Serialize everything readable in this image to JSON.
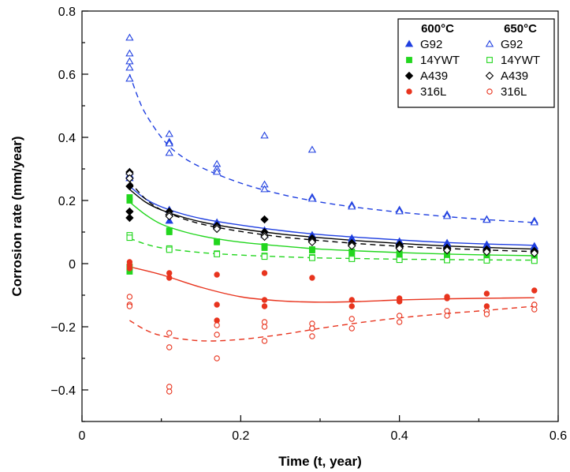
{
  "chart_data": {
    "type": "scatter",
    "xlabel": "Time (t, year)",
    "ylabel": "Corrosion rate (mm/year)",
    "xlim": [
      0,
      0.6
    ],
    "ylim": [
      -0.5,
      0.8
    ],
    "x_ticks": [
      "0",
      "0.2",
      "0.4",
      "0.6"
    ],
    "y_ticks": [
      "−0.4",
      "−0.2",
      "0",
      "0.2",
      "0.4",
      "0.6",
      "0.8"
    ],
    "x_tick_values": [
      0,
      0.2,
      0.4,
      0.6
    ],
    "y_tick_values": [
      -0.4,
      -0.2,
      0,
      0.2,
      0.4,
      0.6,
      0.8
    ],
    "grid": false,
    "legend_placement": "top-right",
    "legend_headers": [
      "600°C",
      "650°C"
    ],
    "series": [
      {
        "name": "G92",
        "group": "600°C",
        "marker": "triangle",
        "filled": true,
        "color": "#1f3fe0",
        "dash": "solid",
        "points": [
          [
            0.06,
            0.29
          ],
          [
            0.06,
            0.28
          ],
          [
            0.06,
            0.27
          ],
          [
            0.11,
            0.17
          ],
          [
            0.11,
            0.135
          ],
          [
            0.17,
            0.13
          ],
          [
            0.17,
            0.12
          ],
          [
            0.23,
            0.105
          ],
          [
            0.23,
            0.09
          ],
          [
            0.29,
            0.09
          ],
          [
            0.29,
            0.085
          ],
          [
            0.34,
            0.08
          ],
          [
            0.34,
            0.075
          ],
          [
            0.4,
            0.07
          ],
          [
            0.4,
            0.065
          ],
          [
            0.46,
            0.065
          ],
          [
            0.46,
            0.06
          ],
          [
            0.51,
            0.06
          ],
          [
            0.51,
            0.055
          ],
          [
            0.57,
            0.055
          ],
          [
            0.57,
            0.05
          ]
        ],
        "fit": [
          [
            0.06,
            0.245
          ],
          [
            0.08,
            0.205
          ],
          [
            0.1,
            0.18
          ],
          [
            0.13,
            0.155
          ],
          [
            0.16,
            0.138
          ],
          [
            0.2,
            0.122
          ],
          [
            0.25,
            0.105
          ],
          [
            0.3,
            0.092
          ],
          [
            0.35,
            0.083
          ],
          [
            0.4,
            0.075
          ],
          [
            0.45,
            0.068
          ],
          [
            0.5,
            0.063
          ],
          [
            0.57,
            0.058
          ]
        ]
      },
      {
        "name": "14YWT",
        "group": "600°C",
        "marker": "square",
        "filled": true,
        "color": "#22d61e",
        "dash": "solid",
        "points": [
          [
            0.06,
            0.21
          ],
          [
            0.06,
            0.2
          ],
          [
            0.06,
            -0.01
          ],
          [
            0.06,
            -0.025
          ],
          [
            0.11,
            0.105
          ],
          [
            0.11,
            0.1
          ],
          [
            0.17,
            0.07
          ],
          [
            0.17,
            0.068
          ],
          [
            0.23,
            0.055
          ],
          [
            0.23,
            0.05
          ],
          [
            0.29,
            0.045
          ],
          [
            0.29,
            0.042
          ],
          [
            0.34,
            0.038
          ],
          [
            0.34,
            0.035
          ],
          [
            0.4,
            0.032
          ],
          [
            0.4,
            0.03
          ],
          [
            0.46,
            0.03
          ],
          [
            0.46,
            0.028
          ],
          [
            0.51,
            0.028
          ],
          [
            0.51,
            0.026
          ],
          [
            0.57,
            0.025
          ],
          [
            0.57,
            0.022
          ]
        ],
        "fit": [
          [
            0.06,
            0.195
          ],
          [
            0.08,
            0.155
          ],
          [
            0.1,
            0.125
          ],
          [
            0.13,
            0.1
          ],
          [
            0.16,
            0.083
          ],
          [
            0.2,
            0.068
          ],
          [
            0.25,
            0.056
          ],
          [
            0.3,
            0.046
          ],
          [
            0.35,
            0.04
          ],
          [
            0.4,
            0.035
          ],
          [
            0.45,
            0.031
          ],
          [
            0.5,
            0.028
          ],
          [
            0.57,
            0.025
          ]
        ]
      },
      {
        "name": "A439",
        "group": "600°C",
        "marker": "diamond",
        "filled": true,
        "color": "#000000",
        "dash": "solid",
        "points": [
          [
            0.06,
            0.29
          ],
          [
            0.06,
            0.27
          ],
          [
            0.06,
            0.245
          ],
          [
            0.06,
            0.165
          ],
          [
            0.06,
            0.145
          ],
          [
            0.11,
            0.165
          ],
          [
            0.11,
            0.155
          ],
          [
            0.17,
            0.12
          ],
          [
            0.17,
            0.115
          ],
          [
            0.23,
            0.14
          ],
          [
            0.23,
            0.1
          ],
          [
            0.29,
            0.08
          ],
          [
            0.29,
            0.075
          ],
          [
            0.34,
            0.065
          ],
          [
            0.34,
            0.06
          ],
          [
            0.4,
            0.06
          ],
          [
            0.4,
            0.055
          ],
          [
            0.46,
            0.05
          ],
          [
            0.46,
            0.048
          ],
          [
            0.51,
            0.045
          ],
          [
            0.51,
            0.042
          ],
          [
            0.57,
            0.04
          ],
          [
            0.57,
            0.038
          ]
        ],
        "fit": [
          [
            0.06,
            0.235
          ],
          [
            0.08,
            0.195
          ],
          [
            0.1,
            0.17
          ],
          [
            0.13,
            0.145
          ],
          [
            0.16,
            0.127
          ],
          [
            0.2,
            0.11
          ],
          [
            0.25,
            0.094
          ],
          [
            0.3,
            0.082
          ],
          [
            0.35,
            0.072
          ],
          [
            0.4,
            0.064
          ],
          [
            0.45,
            0.057
          ],
          [
            0.5,
            0.052
          ],
          [
            0.57,
            0.046
          ]
        ]
      },
      {
        "name": "316L",
        "group": "600°C",
        "marker": "circle",
        "filled": true,
        "color": "#e8341e",
        "dash": "solid",
        "points": [
          [
            0.06,
            0.005
          ],
          [
            0.06,
            -0.005
          ],
          [
            0.06,
            -0.015
          ],
          [
            0.11,
            -0.03
          ],
          [
            0.11,
            -0.045
          ],
          [
            0.17,
            -0.035
          ],
          [
            0.17,
            -0.13
          ],
          [
            0.17,
            -0.18
          ],
          [
            0.23,
            -0.03
          ],
          [
            0.23,
            -0.115
          ],
          [
            0.23,
            -0.135
          ],
          [
            0.29,
            -0.045
          ],
          [
            0.29,
            -0.205
          ],
          [
            0.34,
            -0.115
          ],
          [
            0.34,
            -0.135
          ],
          [
            0.4,
            -0.11
          ],
          [
            0.4,
            -0.12
          ],
          [
            0.46,
            -0.105
          ],
          [
            0.46,
            -0.11
          ],
          [
            0.51,
            -0.095
          ],
          [
            0.51,
            -0.135
          ],
          [
            0.57,
            -0.085
          ],
          [
            0.57,
            -0.13
          ]
        ],
        "fit": [
          [
            0.06,
            -0.01
          ],
          [
            0.1,
            -0.035
          ],
          [
            0.15,
            -0.075
          ],
          [
            0.2,
            -0.105
          ],
          [
            0.25,
            -0.118
          ],
          [
            0.3,
            -0.122
          ],
          [
            0.35,
            -0.12
          ],
          [
            0.4,
            -0.115
          ],
          [
            0.45,
            -0.112
          ],
          [
            0.5,
            -0.11
          ],
          [
            0.57,
            -0.108
          ]
        ]
      },
      {
        "name": "G92",
        "group": "650°C",
        "marker": "triangle",
        "filled": false,
        "color": "#1f3fe0",
        "dash": "dashed",
        "points": [
          [
            0.06,
            0.715
          ],
          [
            0.06,
            0.665
          ],
          [
            0.06,
            0.64
          ],
          [
            0.06,
            0.62
          ],
          [
            0.06,
            0.585
          ],
          [
            0.11,
            0.41
          ],
          [
            0.11,
            0.385
          ],
          [
            0.11,
            0.38
          ],
          [
            0.11,
            0.35
          ],
          [
            0.17,
            0.315
          ],
          [
            0.17,
            0.3
          ],
          [
            0.17,
            0.29
          ],
          [
            0.23,
            0.405
          ],
          [
            0.23,
            0.25
          ],
          [
            0.23,
            0.235
          ],
          [
            0.29,
            0.36
          ],
          [
            0.29,
            0.21
          ],
          [
            0.29,
            0.205
          ],
          [
            0.34,
            0.185
          ],
          [
            0.34,
            0.18
          ],
          [
            0.4,
            0.17
          ],
          [
            0.4,
            0.165
          ],
          [
            0.46,
            0.155
          ],
          [
            0.46,
            0.15
          ],
          [
            0.51,
            0.14
          ],
          [
            0.51,
            0.138
          ],
          [
            0.57,
            0.135
          ],
          [
            0.57,
            0.13
          ]
        ],
        "fit": [
          [
            0.06,
            0.6
          ],
          [
            0.07,
            0.53
          ],
          [
            0.08,
            0.475
          ],
          [
            0.1,
            0.4
          ],
          [
            0.12,
            0.35
          ],
          [
            0.15,
            0.305
          ],
          [
            0.2,
            0.255
          ],
          [
            0.25,
            0.22
          ],
          [
            0.3,
            0.195
          ],
          [
            0.35,
            0.177
          ],
          [
            0.4,
            0.163
          ],
          [
            0.45,
            0.151
          ],
          [
            0.5,
            0.141
          ],
          [
            0.57,
            0.13
          ]
        ]
      },
      {
        "name": "14YWT",
        "group": "650°C",
        "marker": "square",
        "filled": false,
        "color": "#22d61e",
        "dash": "dashed",
        "points": [
          [
            0.06,
            0.09
          ],
          [
            0.06,
            0.082
          ],
          [
            0.11,
            0.048
          ],
          [
            0.11,
            0.044
          ],
          [
            0.17,
            0.032
          ],
          [
            0.17,
            0.03
          ],
          [
            0.23,
            0.025
          ],
          [
            0.23,
            0.022
          ],
          [
            0.29,
            0.02
          ],
          [
            0.29,
            0.018
          ],
          [
            0.34,
            0.016
          ],
          [
            0.34,
            0.015
          ],
          [
            0.4,
            0.014
          ],
          [
            0.4,
            0.012
          ],
          [
            0.46,
            0.012
          ],
          [
            0.46,
            0.011
          ],
          [
            0.51,
            0.011
          ],
          [
            0.51,
            0.01
          ],
          [
            0.57,
            0.01
          ],
          [
            0.57,
            0.009
          ]
        ],
        "fit": [
          [
            0.06,
            0.08
          ],
          [
            0.08,
            0.062
          ],
          [
            0.1,
            0.05
          ],
          [
            0.13,
            0.04
          ],
          [
            0.16,
            0.033
          ],
          [
            0.2,
            0.027
          ],
          [
            0.25,
            0.022
          ],
          [
            0.3,
            0.018
          ],
          [
            0.35,
            0.016
          ],
          [
            0.4,
            0.014
          ],
          [
            0.45,
            0.013
          ],
          [
            0.5,
            0.012
          ],
          [
            0.57,
            0.011
          ]
        ]
      },
      {
        "name": "A439",
        "group": "650°C",
        "marker": "diamond",
        "filled": false,
        "color": "#000000",
        "dash": "dashed",
        "points": [
          [
            0.06,
            0.285
          ],
          [
            0.06,
            0.27
          ],
          [
            0.11,
            0.155
          ],
          [
            0.11,
            0.15
          ],
          [
            0.17,
            0.115
          ],
          [
            0.17,
            0.11
          ],
          [
            0.23,
            0.09
          ],
          [
            0.23,
            0.085
          ],
          [
            0.29,
            0.072
          ],
          [
            0.29,
            0.068
          ],
          [
            0.34,
            0.06
          ],
          [
            0.34,
            0.056
          ],
          [
            0.4,
            0.052
          ],
          [
            0.4,
            0.048
          ],
          [
            0.46,
            0.045
          ],
          [
            0.46,
            0.042
          ],
          [
            0.51,
            0.04
          ],
          [
            0.51,
            0.037
          ],
          [
            0.57,
            0.036
          ],
          [
            0.57,
            0.033
          ]
        ],
        "fit": [
          [
            0.06,
            0.26
          ],
          [
            0.08,
            0.205
          ],
          [
            0.1,
            0.17
          ],
          [
            0.13,
            0.14
          ],
          [
            0.16,
            0.12
          ],
          [
            0.2,
            0.102
          ],
          [
            0.25,
            0.085
          ],
          [
            0.3,
            0.073
          ],
          [
            0.35,
            0.063
          ],
          [
            0.4,
            0.055
          ],
          [
            0.45,
            0.049
          ],
          [
            0.5,
            0.044
          ],
          [
            0.57,
            0.038
          ]
        ]
      },
      {
        "name": "316L",
        "group": "650°C",
        "marker": "circle",
        "filled": false,
        "color": "#e8341e",
        "dash": "dashed",
        "points": [
          [
            0.06,
            -0.105
          ],
          [
            0.06,
            -0.13
          ],
          [
            0.06,
            -0.135
          ],
          [
            0.11,
            -0.22
          ],
          [
            0.11,
            -0.265
          ],
          [
            0.11,
            -0.39
          ],
          [
            0.11,
            -0.405
          ],
          [
            0.17,
            -0.195
          ],
          [
            0.17,
            -0.225
          ],
          [
            0.17,
            -0.3
          ],
          [
            0.23,
            -0.185
          ],
          [
            0.23,
            -0.2
          ],
          [
            0.23,
            -0.245
          ],
          [
            0.29,
            -0.19
          ],
          [
            0.29,
            -0.205
          ],
          [
            0.29,
            -0.23
          ],
          [
            0.34,
            -0.175
          ],
          [
            0.34,
            -0.205
          ],
          [
            0.4,
            -0.165
          ],
          [
            0.4,
            -0.185
          ],
          [
            0.46,
            -0.15
          ],
          [
            0.46,
            -0.165
          ],
          [
            0.51,
            -0.15
          ],
          [
            0.51,
            -0.16
          ],
          [
            0.57,
            -0.13
          ],
          [
            0.57,
            -0.145
          ]
        ],
        "fit": [
          [
            0.06,
            -0.18
          ],
          [
            0.08,
            -0.21
          ],
          [
            0.1,
            -0.228
          ],
          [
            0.13,
            -0.24
          ],
          [
            0.16,
            -0.245
          ],
          [
            0.2,
            -0.24
          ],
          [
            0.25,
            -0.225
          ],
          [
            0.3,
            -0.205
          ],
          [
            0.35,
            -0.187
          ],
          [
            0.4,
            -0.172
          ],
          [
            0.45,
            -0.16
          ],
          [
            0.5,
            -0.15
          ],
          [
            0.57,
            -0.135
          ]
        ]
      }
    ]
  }
}
